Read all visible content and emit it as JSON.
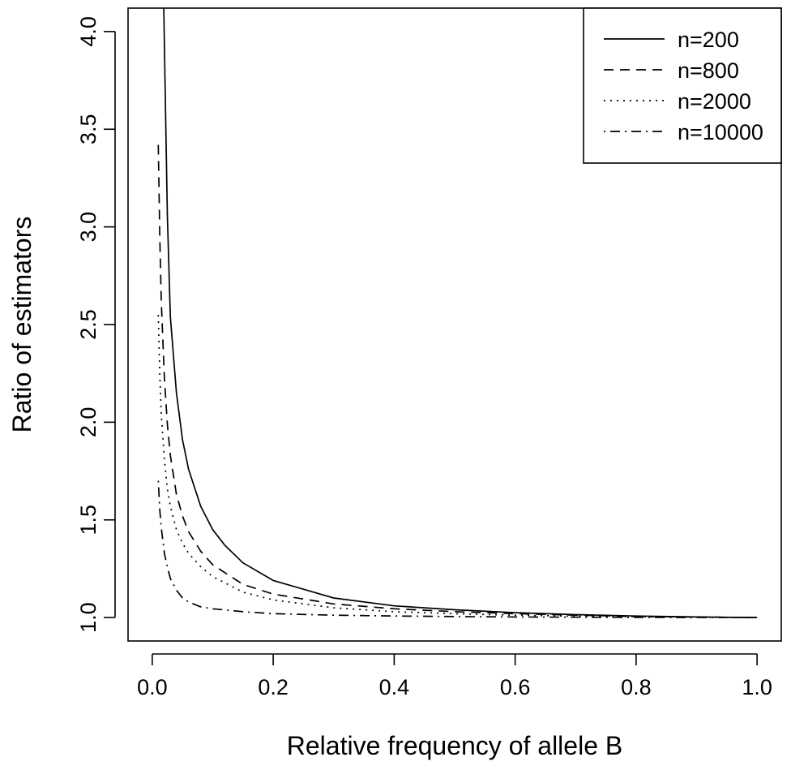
{
  "chart_data": {
    "type": "line",
    "title": "",
    "xlabel": "Relative frequency of allele B",
    "ylabel": "Ratio of estimators",
    "xlim": [
      -0.04,
      1.04
    ],
    "ylim": [
      0.88,
      4.12
    ],
    "xticks": [
      0.0,
      0.2,
      0.4,
      0.6,
      0.8,
      1.0
    ],
    "xtick_labels": [
      "0.0",
      "0.2",
      "0.4",
      "0.6",
      "0.8",
      "1.0"
    ],
    "yticks": [
      1.0,
      1.5,
      2.0,
      2.5,
      3.0,
      3.5,
      4.0
    ],
    "ytick_labels": [
      "1.0",
      "1.5",
      "2.0",
      "2.5",
      "3.0",
      "3.5",
      "4.0"
    ],
    "grid": false,
    "legend_position": "top-right",
    "series": [
      {
        "name": "n=200",
        "line_style": "solid",
        "x": [
          0.0175,
          0.025,
          0.03,
          0.04,
          0.05,
          0.06,
          0.08,
          0.1,
          0.12,
          0.15,
          0.2,
          0.3,
          0.4,
          0.5,
          0.6,
          0.7,
          0.8,
          0.9,
          1.0
        ],
        "y": [
          4.4,
          3.06,
          2.54,
          2.15,
          1.91,
          1.76,
          1.57,
          1.45,
          1.37,
          1.28,
          1.19,
          1.1,
          1.06,
          1.04,
          1.025,
          1.015,
          1.008,
          1.003,
          1.0
        ]
      },
      {
        "name": "n=800",
        "line_style": "dashed",
        "x": [
          0.01,
          0.0125,
          0.015,
          0.02,
          0.025,
          0.03,
          0.04,
          0.05,
          0.06,
          0.08,
          0.1,
          0.15,
          0.2,
          0.3,
          0.4,
          0.5,
          0.6,
          0.7,
          0.8,
          1.0
        ],
        "y": [
          3.42,
          2.94,
          2.62,
          2.23,
          1.99,
          1.83,
          1.63,
          1.52,
          1.44,
          1.34,
          1.27,
          1.17,
          1.12,
          1.07,
          1.045,
          1.03,
          1.02,
          1.012,
          1.006,
          1.0
        ]
      },
      {
        "name": "n=2000",
        "line_style": "dotted",
        "x": [
          0.01,
          0.0125,
          0.015,
          0.02,
          0.025,
          0.03,
          0.04,
          0.05,
          0.06,
          0.08,
          0.1,
          0.15,
          0.2,
          0.3,
          0.4,
          0.5,
          0.6,
          0.7,
          0.8,
          1.0
        ],
        "y": [
          2.55,
          2.24,
          2.04,
          1.81,
          1.66,
          1.57,
          1.45,
          1.38,
          1.33,
          1.26,
          1.21,
          1.13,
          1.09,
          1.05,
          1.03,
          1.02,
          1.012,
          1.007,
          1.004,
          1.0
        ]
      },
      {
        "name": "n=10000",
        "line_style": "dotdash",
        "x": [
          0.01,
          0.0125,
          0.015,
          0.02,
          0.025,
          0.03,
          0.04,
          0.05,
          0.06,
          0.08,
          0.1,
          0.15,
          0.2,
          0.3,
          0.4,
          0.5,
          0.6,
          0.8,
          1.0
        ],
        "y": [
          1.7,
          1.55,
          1.46,
          1.33,
          1.26,
          1.2,
          1.14,
          1.1,
          1.08,
          1.055,
          1.045,
          1.03,
          1.02,
          1.012,
          1.008,
          1.005,
          1.003,
          1.001,
          1.0
        ]
      }
    ]
  }
}
